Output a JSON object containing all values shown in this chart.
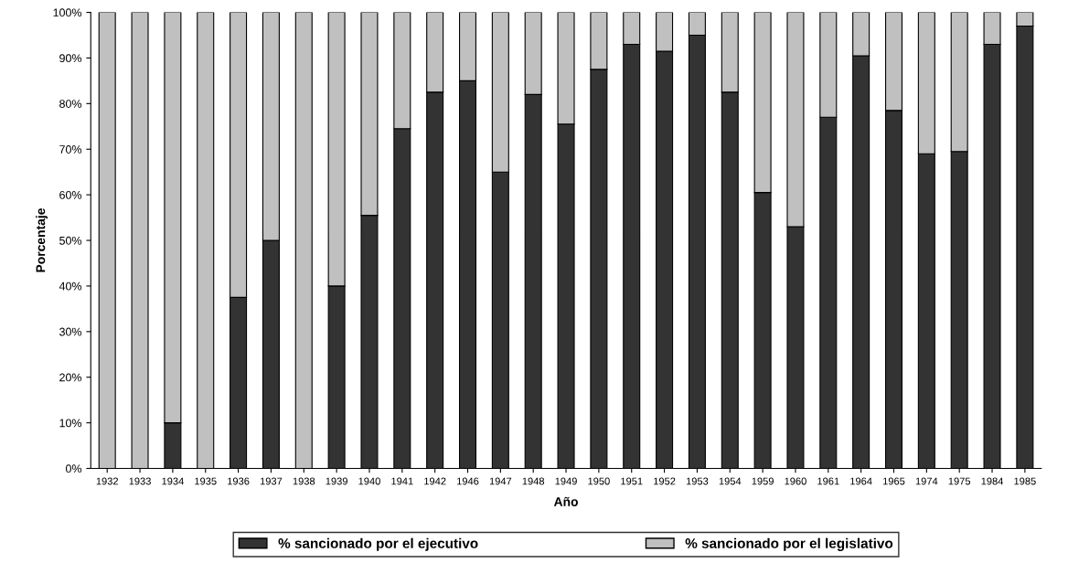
{
  "chart_data": {
    "type": "bar",
    "stacked": true,
    "xlabel": "Año",
    "ylabel": "Porcentaje",
    "categories": [
      "1932",
      "1933",
      "1934",
      "1935",
      "1936",
      "1937",
      "1938",
      "1939",
      "1940",
      "1941",
      "1942",
      "1946",
      "1947",
      "1948",
      "1949",
      "1950",
      "1951",
      "1952",
      "1953",
      "1954",
      "1959",
      "1960",
      "1961",
      "1964",
      "1965",
      "1974",
      "1975",
      "1984",
      "1985"
    ],
    "series": [
      {
        "name": "% sancionado por el ejecutivo",
        "color": "#333333",
        "values": [
          0,
          0,
          10,
          0,
          37.5,
          50,
          0,
          40,
          55.5,
          74.5,
          82.5,
          85,
          65,
          82,
          75.5,
          87.5,
          93,
          91.5,
          95,
          82.5,
          60.5,
          53,
          77,
          90.5,
          78.5,
          69,
          69.5,
          93,
          97
        ]
      },
      {
        "name": "% sancionado por el legislativo",
        "color": "#c0c0c0",
        "values": [
          100,
          100,
          90,
          100,
          62.5,
          50,
          100,
          60,
          44.5,
          25.5,
          17.5,
          15,
          35,
          18,
          24.5,
          12.5,
          7,
          8.5,
          5,
          17.5,
          39.5,
          47,
          23,
          9.5,
          21.5,
          31,
          30.5,
          7,
          3
        ]
      }
    ],
    "ylim": [
      0,
      100
    ],
    "yticks": [
      {
        "value": 0,
        "label": "0%"
      },
      {
        "value": 10,
        "label": "10%"
      },
      {
        "value": 20,
        "label": "20%"
      },
      {
        "value": 30,
        "label": "30%"
      },
      {
        "value": 40,
        "label": "40%"
      },
      {
        "value": 50,
        "label": "50%"
      },
      {
        "value": 60,
        "label": "60%"
      },
      {
        "value": 70,
        "label": "70%"
      },
      {
        "value": 80,
        "label": "80%"
      },
      {
        "value": 90,
        "label": "90%"
      },
      {
        "value": 100,
        "label": "100%"
      }
    ],
    "grid": false,
    "legend": "bottom"
  }
}
